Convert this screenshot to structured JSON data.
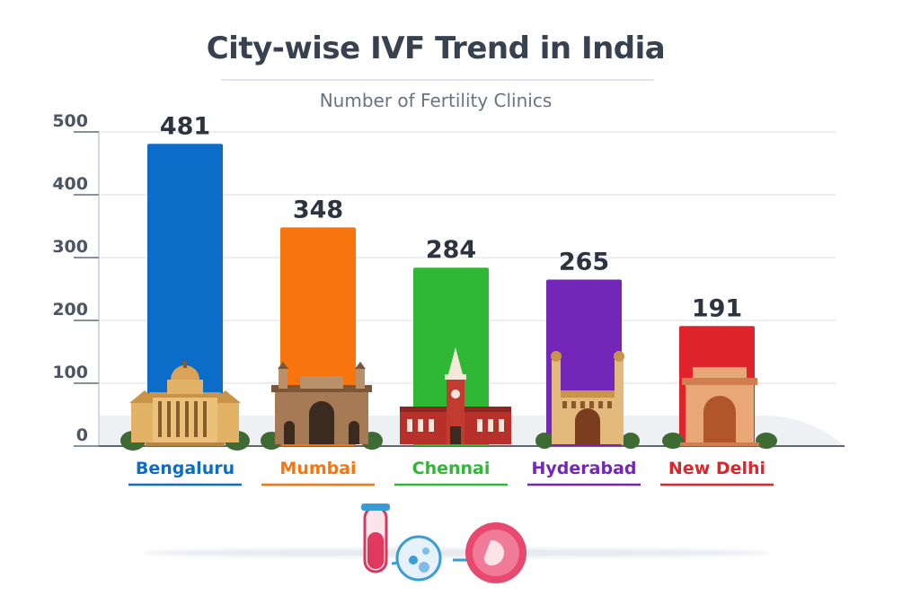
{
  "chart_data": {
    "type": "bar",
    "title": "City-wise IVF Trend in India",
    "subtitle": "Number of Fertility Clinics",
    "xlabel": "",
    "ylabel": "",
    "categories": [
      "Bengaluru",
      "Mumbai",
      "Chennai",
      "Hyderabad",
      "New Delhi"
    ],
    "values": [
      481,
      348,
      284,
      265,
      191
    ],
    "colors": [
      "#0b6dc7",
      "#f7740f",
      "#2fb835",
      "#7426b8",
      "#e0242c"
    ],
    "ylim": [
      0,
      500
    ],
    "yticks": [
      0,
      100,
      200,
      300,
      400,
      500
    ],
    "grid": true
  },
  "icons": {
    "landmarks": [
      "vidhana-soudha-icon",
      "gateway-of-india-icon",
      "chennai-central-icon",
      "charminar-icon",
      "india-gate-icon"
    ],
    "footer": [
      "test-tube-icon",
      "cell-injection-icon",
      "embryo-icon"
    ]
  }
}
